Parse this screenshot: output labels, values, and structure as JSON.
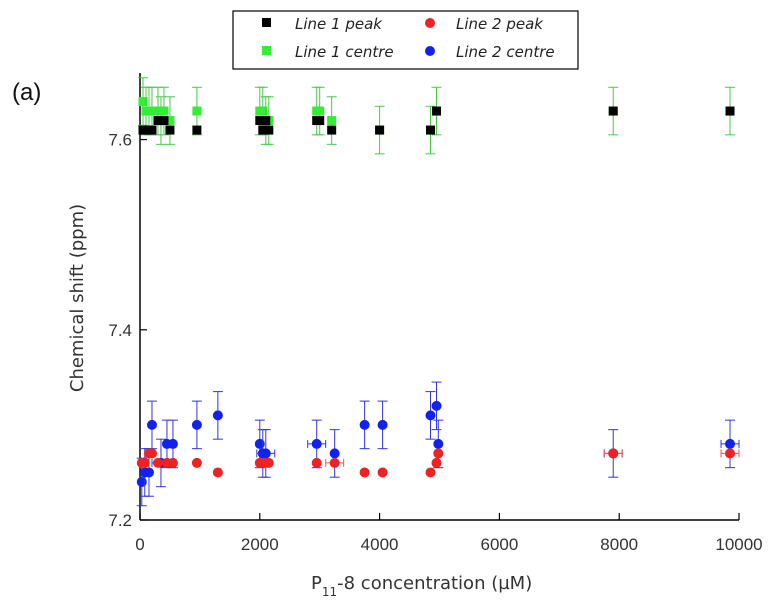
{
  "panel_label": "(a)",
  "legend_items": [
    "Line 1 peak",
    "Line 1 centre",
    "Line 2 peak",
    "Line 2 centre"
  ],
  "colors": {
    "line1_peak": "#000000",
    "line1_centre": "#33ee33",
    "line2_peak": "#ee2222",
    "line2_centre": "#1122ee",
    "error_green": "#44cc44",
    "error_blue": "#3333dd",
    "error_red": "#ee5555",
    "error_black": "#333333"
  },
  "chart_data": {
    "type": "scatter",
    "xlabel_main": "P",
    "xlabel_sub": "11",
    "xlabel_rest": "-8 concentration (µM)",
    "ylabel": "Chemical shift (ppm)",
    "xlim": [
      0,
      10000
    ],
    "ylim": [
      7.2,
      7.67
    ],
    "x_ticks": [
      0,
      2000,
      4000,
      6000,
      8000,
      10000
    ],
    "x_tick_labels": [
      "0",
      "2000",
      "4000",
      "6000",
      "8000",
      "10000"
    ],
    "y_ticks": [
      7.2,
      7.4,
      7.6
    ],
    "y_tick_labels": [
      "7.2",
      "7.4",
      "7.6"
    ],
    "grid": false,
    "legend_position": "top-center (outside plot)",
    "series": [
      {
        "name": "Line 1 peak",
        "marker": "square",
        "x": [
          50,
          100,
          150,
          200,
          300,
          350,
          400,
          500,
          950,
          2000,
          2050,
          2100,
          2150,
          2950,
          3000,
          3200,
          4000,
          4850,
          4950,
          7900,
          9850
        ],
        "y": [
          7.61,
          7.61,
          7.61,
          7.61,
          7.62,
          7.62,
          7.62,
          7.61,
          7.61,
          7.62,
          7.61,
          7.62,
          7.61,
          7.62,
          7.62,
          7.61,
          7.61,
          7.61,
          7.63,
          7.63,
          7.63
        ],
        "yerr": [
          0,
          0,
          0,
          0,
          0,
          0,
          0,
          0,
          0,
          0,
          0,
          0,
          0,
          0,
          0,
          0,
          0,
          0,
          0,
          0,
          0
        ],
        "xerr": [
          0,
          0,
          0,
          0,
          0,
          0,
          0,
          0,
          0,
          0,
          0,
          0,
          0,
          0,
          0,
          0,
          0,
          0,
          0,
          0,
          0
        ]
      },
      {
        "name": "Line 1 centre",
        "marker": "square",
        "x": [
          50,
          100,
          150,
          200,
          300,
          350,
          400,
          500,
          950,
          2000,
          2050,
          2100,
          2150,
          2950,
          3000,
          3200,
          4000,
          4850,
          4950,
          7900,
          9850
        ],
        "y": [
          7.64,
          7.63,
          7.63,
          7.63,
          7.63,
          7.62,
          7.63,
          7.62,
          7.63,
          7.63,
          7.63,
          7.62,
          7.62,
          7.63,
          7.63,
          7.62,
          7.61,
          7.61,
          7.63,
          7.63,
          7.63
        ],
        "yerr": [
          0.025,
          0.025,
          0.025,
          0.025,
          0.025,
          0.025,
          0.025,
          0.025,
          0.025,
          0.025,
          0.025,
          0.025,
          0.025,
          0.025,
          0.025,
          0.025,
          0.025,
          0.025,
          0.025,
          0.025,
          0.025
        ],
        "xerr": [
          0,
          0,
          0,
          0,
          0,
          0,
          0,
          0,
          0,
          0,
          0,
          0,
          0,
          0,
          0,
          0,
          0,
          0,
          0,
          0,
          0
        ]
      },
      {
        "name": "Line 2 peak",
        "marker": "circle",
        "x": [
          30,
          80,
          150,
          200,
          300,
          450,
          550,
          950,
          1300,
          2000,
          2100,
          2150,
          2950,
          3250,
          3750,
          4050,
          4850,
          4950,
          4980,
          7900,
          9850
        ],
        "y": [
          7.26,
          7.26,
          7.27,
          7.27,
          7.26,
          7.26,
          7.26,
          7.26,
          7.25,
          7.26,
          7.26,
          7.26,
          7.26,
          7.26,
          7.25,
          7.25,
          7.25,
          7.26,
          7.27,
          7.27,
          7.27
        ],
        "yerr": [
          0,
          0,
          0,
          0,
          0,
          0,
          0,
          0,
          0,
          0,
          0,
          0,
          0,
          0,
          0,
          0,
          0,
          0,
          0,
          0,
          0
        ],
        "xerr": [
          0,
          0,
          0,
          0,
          0,
          0,
          0,
          0,
          0,
          0,
          0,
          0,
          0,
          150,
          0,
          0,
          0,
          0,
          0,
          150,
          150
        ]
      },
      {
        "name": "Line 2 centre",
        "marker": "circle",
        "x": [
          30,
          80,
          150,
          200,
          350,
          450,
          550,
          950,
          1300,
          2000,
          2050,
          2100,
          2950,
          3250,
          3750,
          4050,
          4850,
          4950,
          4980,
          7900,
          9850
        ],
        "y": [
          7.24,
          7.25,
          7.25,
          7.3,
          7.26,
          7.28,
          7.28,
          7.3,
          7.31,
          7.28,
          7.27,
          7.27,
          7.28,
          7.27,
          7.3,
          7.3,
          7.31,
          7.32,
          7.28,
          7.27,
          7.28
        ],
        "yerr": [
          0.025,
          0.025,
          0.025,
          0.025,
          0.025,
          0.025,
          0.025,
          0.025,
          0.025,
          0.025,
          0.025,
          0.025,
          0.025,
          0.025,
          0.025,
          0.025,
          0.025,
          0.025,
          0.025,
          0.025,
          0.025
        ],
        "xerr": [
          0,
          0,
          0,
          0,
          150,
          0,
          0,
          0,
          0,
          0,
          0,
          150,
          150,
          0,
          0,
          0,
          0,
          0,
          0,
          150,
          150
        ]
      }
    ]
  }
}
